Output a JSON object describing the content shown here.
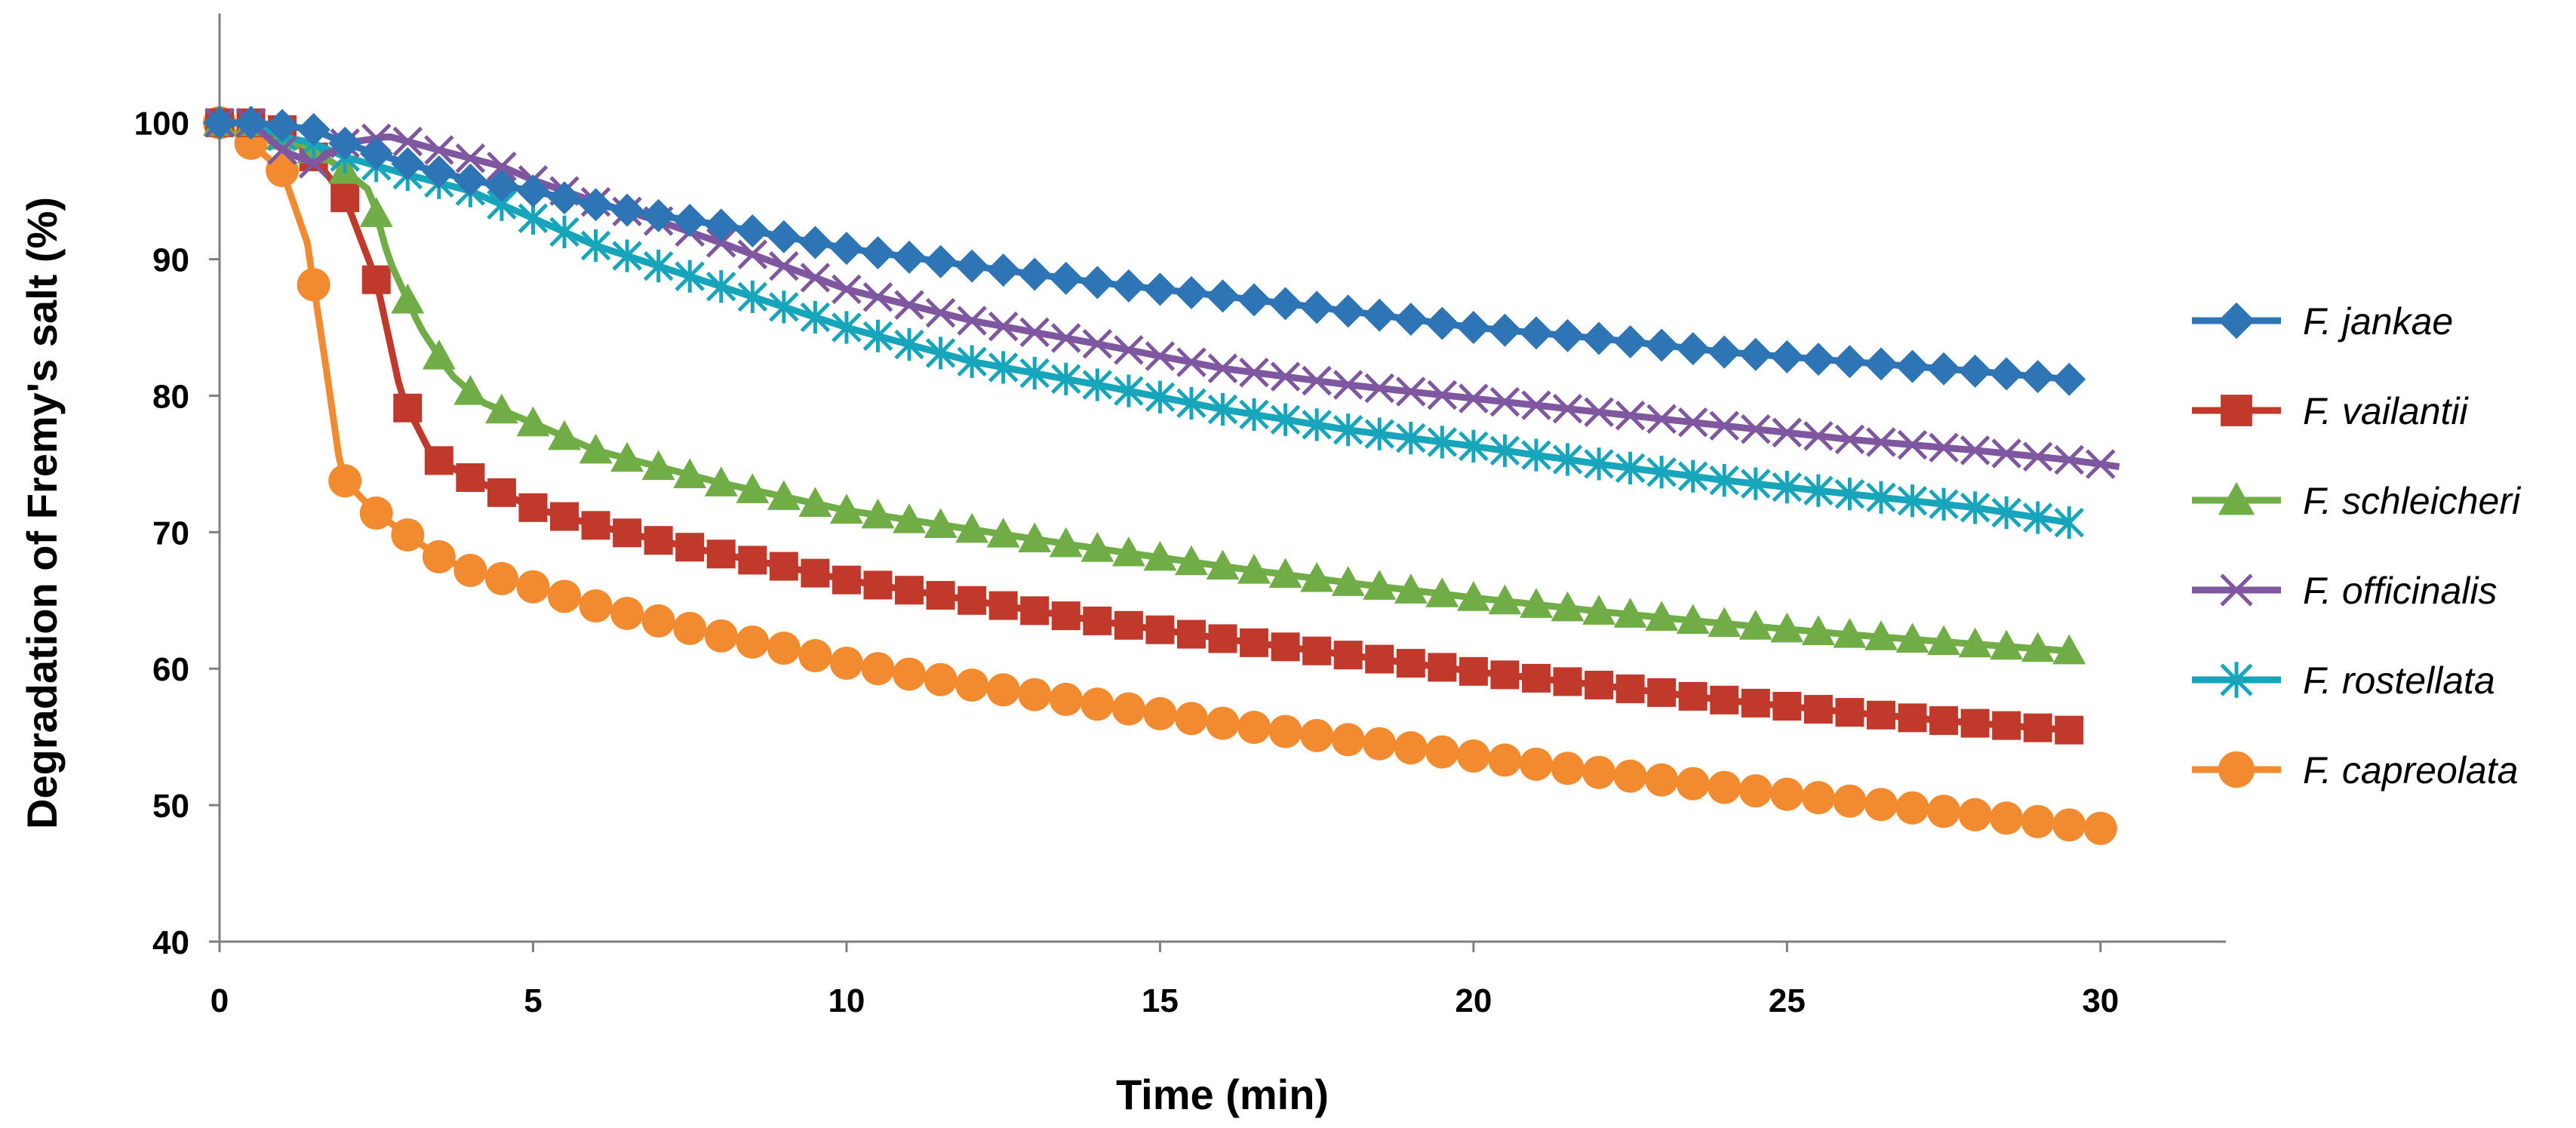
{
  "chart_data": {
    "type": "line",
    "title": "",
    "xlabel": "Time (min)",
    "ylabel": "Degradation of Fremy's salt (%)",
    "xlim": [
      0,
      32
    ],
    "ylim": [
      40,
      108
    ],
    "xticks": [
      0,
      5,
      10,
      15,
      20,
      25,
      30
    ],
    "yticks": [
      40,
      50,
      60,
      70,
      80,
      90,
      100
    ],
    "grid": false,
    "legend_position": "right",
    "series": [
      {
        "name": "F. jankae",
        "color": "#2E75B6",
        "marker": "diamond",
        "x_end": 29.5,
        "points": [
          [
            0,
            100
          ],
          [
            0.5,
            100
          ],
          [
            1.0,
            99.8
          ],
          [
            1.5,
            99.5
          ],
          [
            2.0,
            98.5
          ],
          [
            3,
            97.0
          ],
          [
            4,
            95.8
          ],
          [
            5,
            95.0
          ],
          [
            6,
            94.0
          ],
          [
            7,
            93.2
          ],
          [
            8,
            92.5
          ],
          [
            10,
            90.8
          ],
          [
            12,
            89.5
          ],
          [
            14,
            88.3
          ],
          [
            16,
            87.3
          ],
          [
            18,
            86.2
          ],
          [
            20,
            85.0
          ],
          [
            22,
            84.2
          ],
          [
            24,
            83.2
          ],
          [
            26,
            82.5
          ],
          [
            28,
            81.8
          ],
          [
            29.5,
            81.2
          ]
        ]
      },
      {
        "name": "F. vailantii",
        "color": "#C0392B",
        "marker": "square",
        "x_end": 29.5,
        "points": [
          [
            0,
            100
          ],
          [
            0.5,
            100
          ],
          [
            1.0,
            99.5
          ],
          [
            1.5,
            97.5
          ],
          [
            2.0,
            94.5
          ],
          [
            2.5,
            88.5
          ],
          [
            2.9,
            80.0
          ],
          [
            3.4,
            75.5
          ],
          [
            4.0,
            74.0
          ],
          [
            5,
            71.8
          ],
          [
            6,
            70.5
          ],
          [
            7,
            69.4
          ],
          [
            8,
            68.4
          ],
          [
            9,
            67.5
          ],
          [
            10,
            66.5
          ],
          [
            12,
            65.0
          ],
          [
            14,
            63.5
          ],
          [
            16,
            62.2
          ],
          [
            18,
            61.0
          ],
          [
            20,
            59.8
          ],
          [
            22,
            58.8
          ],
          [
            24,
            57.7
          ],
          [
            26,
            56.8
          ],
          [
            28,
            56.0
          ],
          [
            29.5,
            55.5
          ]
        ]
      },
      {
        "name": "F. schleicheri",
        "color": "#70AD47",
        "marker": "triangle",
        "x_end": 29.5,
        "points": [
          [
            0,
            100
          ],
          [
            0.5,
            100
          ],
          [
            1.0,
            99.0
          ],
          [
            1.5,
            98.0
          ],
          [
            2.0,
            96.5
          ],
          [
            2.4,
            95.0
          ],
          [
            2.7,
            90.0
          ],
          [
            3.2,
            85.0
          ],
          [
            3.7,
            81.5
          ],
          [
            4.2,
            79.5
          ],
          [
            5,
            78.0
          ],
          [
            6,
            76.0
          ],
          [
            7,
            74.8
          ],
          [
            8,
            73.6
          ],
          [
            9,
            72.6
          ],
          [
            10,
            71.6
          ],
          [
            12,
            70.2
          ],
          [
            14,
            68.8
          ],
          [
            16,
            67.5
          ],
          [
            18,
            66.3
          ],
          [
            20,
            65.2
          ],
          [
            22,
            64.2
          ],
          [
            24,
            63.3
          ],
          [
            26,
            62.5
          ],
          [
            28,
            61.8
          ],
          [
            29.5,
            61.3
          ]
        ]
      },
      {
        "name": "F. officinalis",
        "color": "#7E57A0",
        "marker": "x",
        "x_end": 30.3,
        "points": [
          [
            0,
            100
          ],
          [
            0.5,
            100
          ],
          [
            1.0,
            98.0
          ],
          [
            1.5,
            97.0
          ],
          [
            2.0,
            98.5
          ],
          [
            2.7,
            99.0
          ],
          [
            3.5,
            98.0
          ],
          [
            4.5,
            96.8
          ],
          [
            5,
            95.8
          ],
          [
            6,
            94.2
          ],
          [
            7,
            92.8
          ],
          [
            8,
            91.2
          ],
          [
            9,
            89.5
          ],
          [
            10,
            87.8
          ],
          [
            12,
            85.5
          ],
          [
            14,
            83.8
          ],
          [
            16,
            82.0
          ],
          [
            18,
            80.8
          ],
          [
            20,
            79.8
          ],
          [
            22,
            78.8
          ],
          [
            24,
            77.8
          ],
          [
            26,
            76.8
          ],
          [
            28,
            76.0
          ],
          [
            29.5,
            75.3
          ],
          [
            30.3,
            74.8
          ]
        ]
      },
      {
        "name": "F. rostellata",
        "color": "#17A5BC",
        "marker": "star",
        "x_end": 29.5,
        "points": [
          [
            0,
            100
          ],
          [
            0.5,
            100
          ],
          [
            1.0,
            99.0
          ],
          [
            1.5,
            98.5
          ],
          [
            2.0,
            97.5
          ],
          [
            3,
            96.2
          ],
          [
            4,
            95.0
          ],
          [
            5,
            93.0
          ],
          [
            6,
            91.0
          ],
          [
            7,
            89.5
          ],
          [
            8,
            88.0
          ],
          [
            9,
            86.5
          ],
          [
            10,
            85.0
          ],
          [
            12,
            82.5
          ],
          [
            14,
            80.8
          ],
          [
            16,
            79.0
          ],
          [
            18,
            77.5
          ],
          [
            20,
            76.3
          ],
          [
            22,
            75.0
          ],
          [
            24,
            73.8
          ],
          [
            26,
            72.8
          ],
          [
            28,
            71.8
          ],
          [
            29.5,
            70.7
          ]
        ]
      },
      {
        "name": "F. capreolata",
        "color": "#F28A30",
        "marker": "circle",
        "x_end": 30,
        "points": [
          [
            0,
            100
          ],
          [
            0.5,
            98.5
          ],
          [
            1.0,
            96.5
          ],
          [
            1.4,
            91.2
          ],
          [
            1.7,
            82.0
          ],
          [
            1.95,
            74.0
          ],
          [
            2.5,
            71.4
          ],
          [
            3,
            69.8
          ],
          [
            3.5,
            68.2
          ],
          [
            4,
            67.2
          ],
          [
            5,
            66.0
          ],
          [
            6,
            64.6
          ],
          [
            7,
            63.5
          ],
          [
            8,
            62.4
          ],
          [
            9,
            61.5
          ],
          [
            10,
            60.4
          ],
          [
            12,
            58.8
          ],
          [
            14,
            57.4
          ],
          [
            16,
            56.0
          ],
          [
            18,
            54.8
          ],
          [
            20,
            53.6
          ],
          [
            22,
            52.4
          ],
          [
            24,
            51.3
          ],
          [
            26,
            50.3
          ],
          [
            28,
            49.3
          ],
          [
            30,
            48.3
          ]
        ]
      }
    ]
  }
}
